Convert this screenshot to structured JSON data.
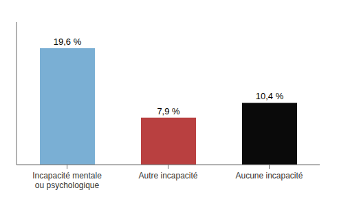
{
  "chart_data": {
    "type": "bar",
    "categories": [
      "Incapacité mentale\nou psychologique",
      "Autre incapacité",
      "Aucune incapacité"
    ],
    "values": [
      19.6,
      7.9,
      10.4
    ],
    "value_labels": [
      "19,6 %",
      "7,9 %",
      "10,4 %"
    ],
    "colors": [
      "#7aafd4",
      "#b94040",
      "#0a0a0a"
    ],
    "ylim": [
      0,
      24
    ],
    "data_labels": true,
    "tick_labels": "x"
  }
}
